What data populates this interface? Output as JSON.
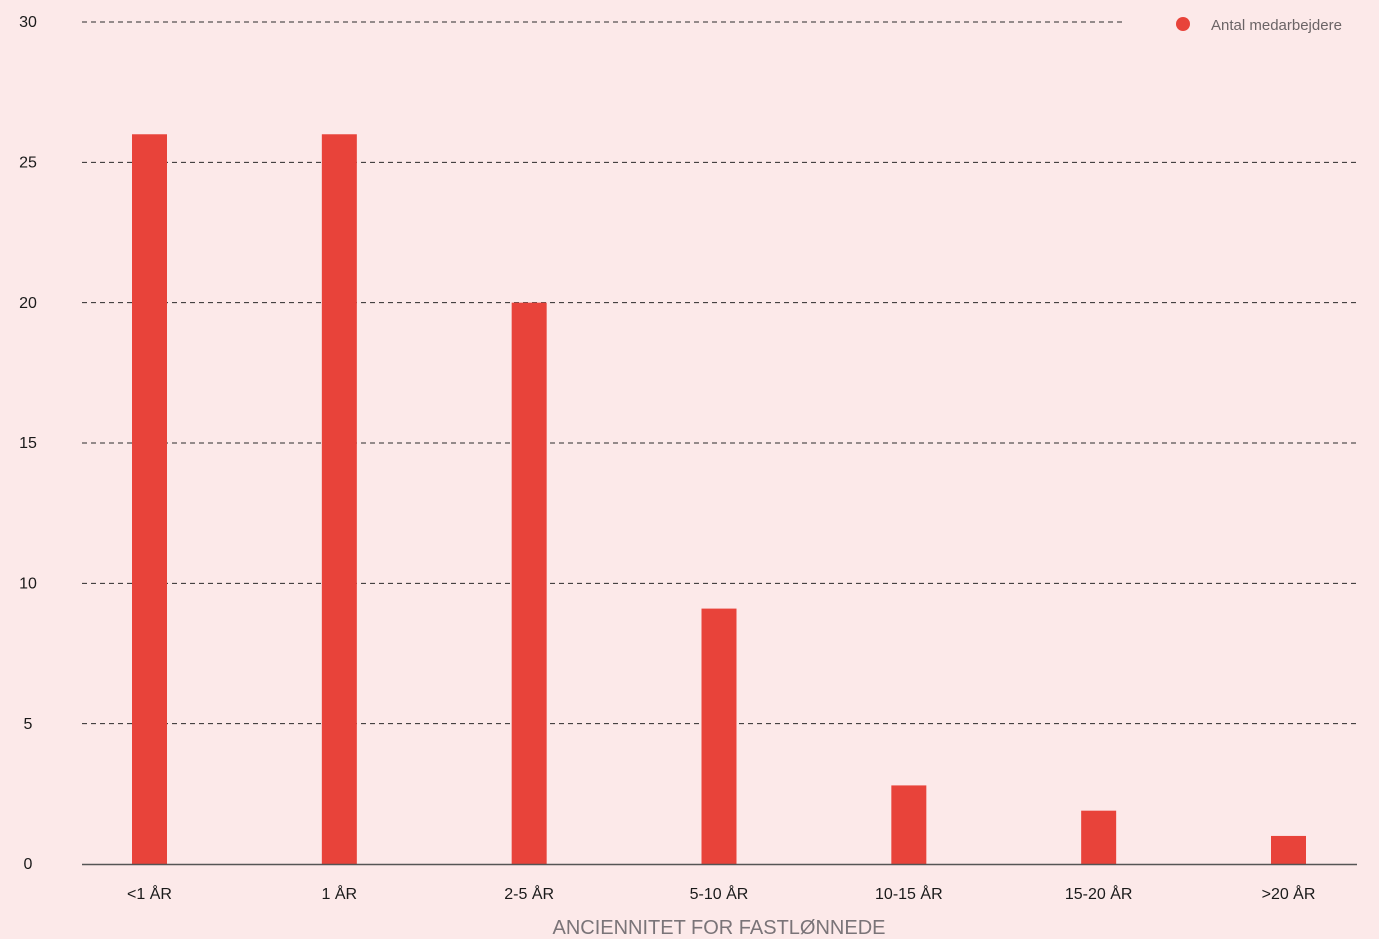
{
  "chart_data": {
    "type": "bar",
    "categories": [
      "<1 ÅR",
      "1 ÅR",
      "2-5 ÅR",
      "5-10 ÅR",
      "10-15 ÅR",
      "15-20 ÅR",
      ">20 ÅR"
    ],
    "series": [
      {
        "name": "Antal medarbejdere",
        "color": "#e8433a",
        "values": [
          26,
          26,
          20,
          9.1,
          2.8,
          1.9,
          1.0
        ]
      }
    ],
    "xlabel": "ANCIENNITET FOR FASTLØNNEDE",
    "ylabel": "",
    "ylim": [
      0,
      30
    ],
    "yticks": [
      0,
      5,
      10,
      15,
      20,
      25,
      30
    ],
    "grid": true,
    "grid_style": "dashed",
    "legend_position": "top-right"
  }
}
